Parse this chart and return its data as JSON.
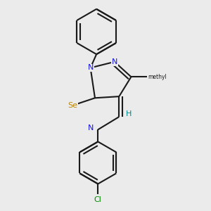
{
  "bg": "#ebebeb",
  "bc": "#1a1a1a",
  "lw": 1.5,
  "dbo": 0.04,
  "N_color": "#1515e0",
  "Se_color": "#b8860b",
  "Cl_color": "#008800",
  "H_color": "#008888",
  "C_color": "#1a1a1a",
  "font_size": 8.0,
  "xlim": [
    0.4,
    2.6
  ],
  "ylim": [
    0.1,
    2.9
  ]
}
